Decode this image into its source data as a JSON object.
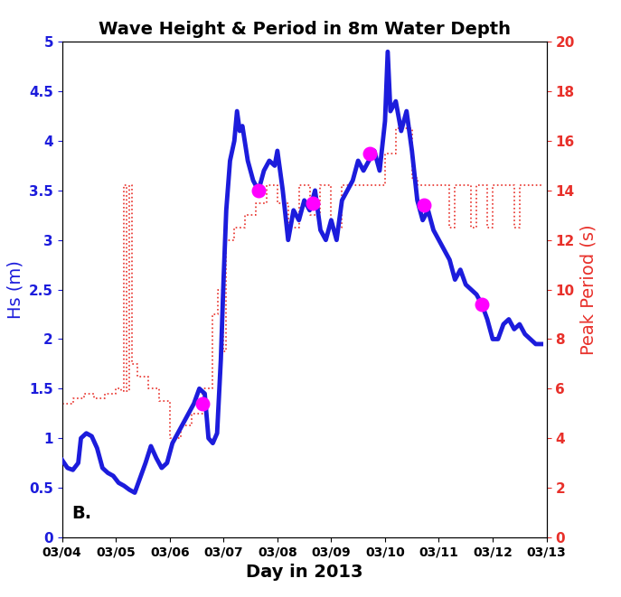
{
  "chart_data": {
    "type": "line",
    "title": "Wave Height & Period in 8m Water Depth",
    "x_label": "Day in 2013",
    "y_label": "Hs (m)",
    "y2_label": "Peak Period (s)",
    "annotations": [
      "B."
    ],
    "grid": false,
    "xlim": [
      0,
      9
    ],
    "xticks": [
      {
        "value": 0,
        "label": "03/04"
      },
      {
        "value": 1,
        "label": "03/05"
      },
      {
        "value": 2,
        "label": "03/06"
      },
      {
        "value": 3,
        "label": "03/07"
      },
      {
        "value": 4,
        "label": "03/08"
      },
      {
        "value": 5,
        "label": "03/09"
      },
      {
        "value": 6,
        "label": "03/10"
      },
      {
        "value": 7,
        "label": "03/11"
      },
      {
        "value": 8,
        "label": "03/12"
      },
      {
        "value": 9,
        "label": "03/13"
      }
    ],
    "ylim": [
      0,
      5
    ],
    "yticks": [
      0,
      0.5,
      1,
      1.5,
      2,
      2.5,
      3,
      3.5,
      4,
      4.5,
      5
    ],
    "y2lim": [
      0,
      20
    ],
    "y2ticks": [
      0,
      2,
      4,
      6,
      8,
      10,
      12,
      14,
      16,
      18,
      20
    ],
    "series": [
      {
        "name": "Hs (m)",
        "type": "line",
        "color": "#1c1cdc",
        "line_style": "solid",
        "axis": "y",
        "x": [
          0.0,
          0.1,
          0.2,
          0.3,
          0.35,
          0.45,
          0.55,
          0.65,
          0.75,
          0.85,
          0.95,
          1.05,
          1.15,
          1.25,
          1.35,
          1.45,
          1.55,
          1.65,
          1.75,
          1.85,
          1.95,
          2.05,
          2.15,
          2.25,
          2.35,
          2.45,
          2.55,
          2.65,
          2.72,
          2.8,
          2.88,
          2.95,
          3.0,
          3.05,
          3.12,
          3.2,
          3.25,
          3.3,
          3.35,
          3.45,
          3.55,
          3.65,
          3.75,
          3.85,
          3.95,
          4.0,
          4.1,
          4.2,
          4.3,
          4.4,
          4.5,
          4.6,
          4.7,
          4.8,
          4.9,
          5.0,
          5.1,
          5.2,
          5.3,
          5.4,
          5.5,
          5.6,
          5.7,
          5.8,
          5.9,
          6.0,
          6.05,
          6.1,
          6.2,
          6.3,
          6.4,
          6.5,
          6.6,
          6.7,
          6.8,
          6.9,
          7.0,
          7.1,
          7.2,
          7.3,
          7.4,
          7.5,
          7.6,
          7.7,
          7.8,
          7.9,
          8.0,
          8.1,
          8.2,
          8.3,
          8.4,
          8.5,
          8.6,
          8.7,
          8.8,
          8.9
        ],
        "values": [
          0.78,
          0.7,
          0.68,
          0.75,
          1.0,
          1.05,
          1.02,
          0.9,
          0.7,
          0.65,
          0.62,
          0.55,
          0.52,
          0.48,
          0.45,
          0.6,
          0.75,
          0.92,
          0.8,
          0.7,
          0.75,
          0.95,
          1.05,
          1.15,
          1.25,
          1.35,
          1.5,
          1.45,
          1.0,
          0.95,
          1.05,
          1.8,
          2.6,
          3.3,
          3.8,
          4.0,
          4.3,
          4.1,
          4.15,
          3.8,
          3.6,
          3.5,
          3.7,
          3.8,
          3.75,
          3.9,
          3.5,
          3.0,
          3.3,
          3.2,
          3.4,
          3.3,
          3.5,
          3.1,
          3.0,
          3.2,
          3.0,
          3.4,
          3.5,
          3.6,
          3.8,
          3.7,
          3.8,
          3.9,
          3.7,
          4.2,
          4.9,
          4.3,
          4.4,
          4.1,
          4.3,
          3.9,
          3.4,
          3.2,
          3.3,
          3.1,
          3.0,
          2.9,
          2.8,
          2.6,
          2.7,
          2.55,
          2.5,
          2.45,
          2.35,
          2.2,
          2.0,
          2.0,
          2.15,
          2.2,
          2.1,
          2.15,
          2.05,
          2.0,
          1.95,
          1.95
        ]
      },
      {
        "name": "Peak Period (s)",
        "type": "line",
        "color": "#e8302a",
        "line_style": "dotted",
        "axis": "y2",
        "x": [
          0.0,
          0.2,
          0.4,
          0.6,
          0.8,
          1.0,
          1.1,
          1.15,
          1.2,
          1.25,
          1.3,
          1.4,
          1.6,
          1.8,
          2.0,
          2.2,
          2.4,
          2.6,
          2.8,
          2.9,
          3.0,
          3.05,
          3.2,
          3.4,
          3.6,
          3.8,
          4.0,
          4.2,
          4.4,
          4.6,
          4.8,
          5.0,
          5.2,
          5.5,
          5.8,
          6.0,
          6.2,
          6.4,
          6.5,
          6.6,
          7.0,
          7.2,
          7.3,
          7.6,
          7.7,
          7.9,
          8.0,
          8.4,
          8.5,
          8.9
        ],
        "values": [
          5.4,
          5.6,
          5.8,
          5.6,
          5.8,
          6.0,
          5.9,
          14.2,
          5.9,
          14.2,
          7.0,
          6.5,
          6.0,
          5.5,
          4.0,
          4.5,
          5.0,
          6.0,
          9.0,
          10.0,
          7.5,
          12.0,
          12.5,
          13.0,
          13.5,
          14.2,
          13.5,
          12.5,
          14.2,
          13.0,
          14.2,
          12.5,
          14.2,
          14.2,
          14.2,
          15.5,
          16.5,
          16.5,
          14.5,
          14.2,
          14.2,
          12.5,
          14.2,
          12.5,
          14.2,
          12.5,
          14.2,
          12.5,
          14.2,
          14.2
        ]
      },
      {
        "type": "scatter",
        "color": "#ff00ff",
        "marker": "o",
        "axis": "y",
        "x": [
          2.6,
          3.65,
          4.65,
          5.72,
          6.72,
          7.8
        ],
        "values": [
          1.35,
          3.5,
          3.37,
          3.87,
          3.35,
          2.35
        ]
      }
    ]
  }
}
